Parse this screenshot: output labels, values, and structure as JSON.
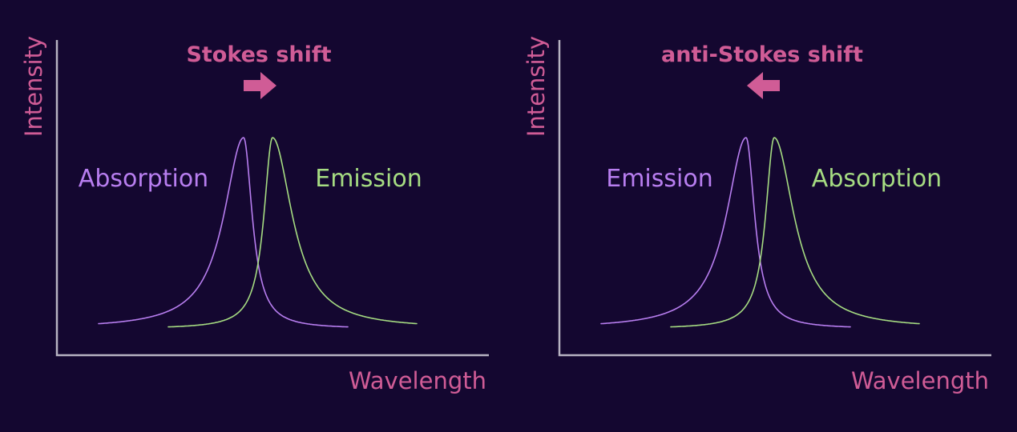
{
  "colors": {
    "background": "#140730",
    "axis": "#b7b3c2",
    "accent": "#d05c96",
    "purple": "#b87ef0",
    "green": "#a6dc82"
  },
  "panels": [
    {
      "shift_label": "Stokes shift",
      "arrow_direction": "right",
      "y_label": "Intensity",
      "x_label": "Wavelength",
      "curves": [
        {
          "label": "Absorption",
          "color": "purple",
          "peak_side": "left"
        },
        {
          "label": "Emission",
          "color": "green",
          "peak_side": "right"
        }
      ]
    },
    {
      "shift_label": "anti-Stokes shift",
      "arrow_direction": "left",
      "y_label": "Intensity",
      "x_label": "Wavelength",
      "curves": [
        {
          "label": "Emission",
          "color": "purple",
          "peak_side": "left"
        },
        {
          "label": "Absorption",
          "color": "green",
          "peak_side": "right"
        }
      ]
    }
  ]
}
